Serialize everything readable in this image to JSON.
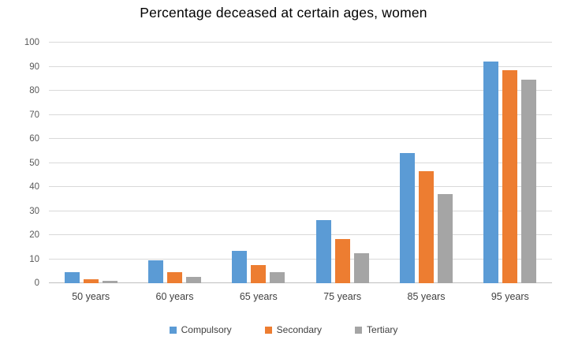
{
  "title": "Percentage deceased at certain ages, women",
  "chart_data": {
    "type": "bar",
    "title": "Percentage deceased at certain ages, women",
    "xlabel": "",
    "ylabel": "",
    "categories": [
      "50 years",
      "60 years",
      "65 years",
      "75 years",
      "85 years",
      "95 years"
    ],
    "series": [
      {
        "name": "Compulsory",
        "color": "#5B9BD5",
        "values": [
          4.5,
          9.5,
          13.4,
          26.3,
          54.2,
          92.1
        ]
      },
      {
        "name": "Secondary",
        "color": "#ED7D31",
        "values": [
          1.8,
          4.7,
          7.4,
          18.5,
          46.4,
          88.6
        ]
      },
      {
        "name": "Tertiary",
        "color": "#A5A5A5",
        "values": [
          1.1,
          2.7,
          4.6,
          12.6,
          37.2,
          84.5
        ]
      }
    ],
    "ylim": [
      0,
      100
    ],
    "yticks": [
      0,
      10,
      20,
      30,
      40,
      50,
      60,
      70,
      80,
      90,
      100
    ],
    "grid": true,
    "legend_position": "bottom"
  },
  "colors": {
    "background": "#ffffff",
    "gridline": "#d9d9d9",
    "axis_line": "#bfbfbf",
    "tick_label": "#595959",
    "category_label": "#404040",
    "legend_label": "#404040",
    "title": "#000000"
  }
}
